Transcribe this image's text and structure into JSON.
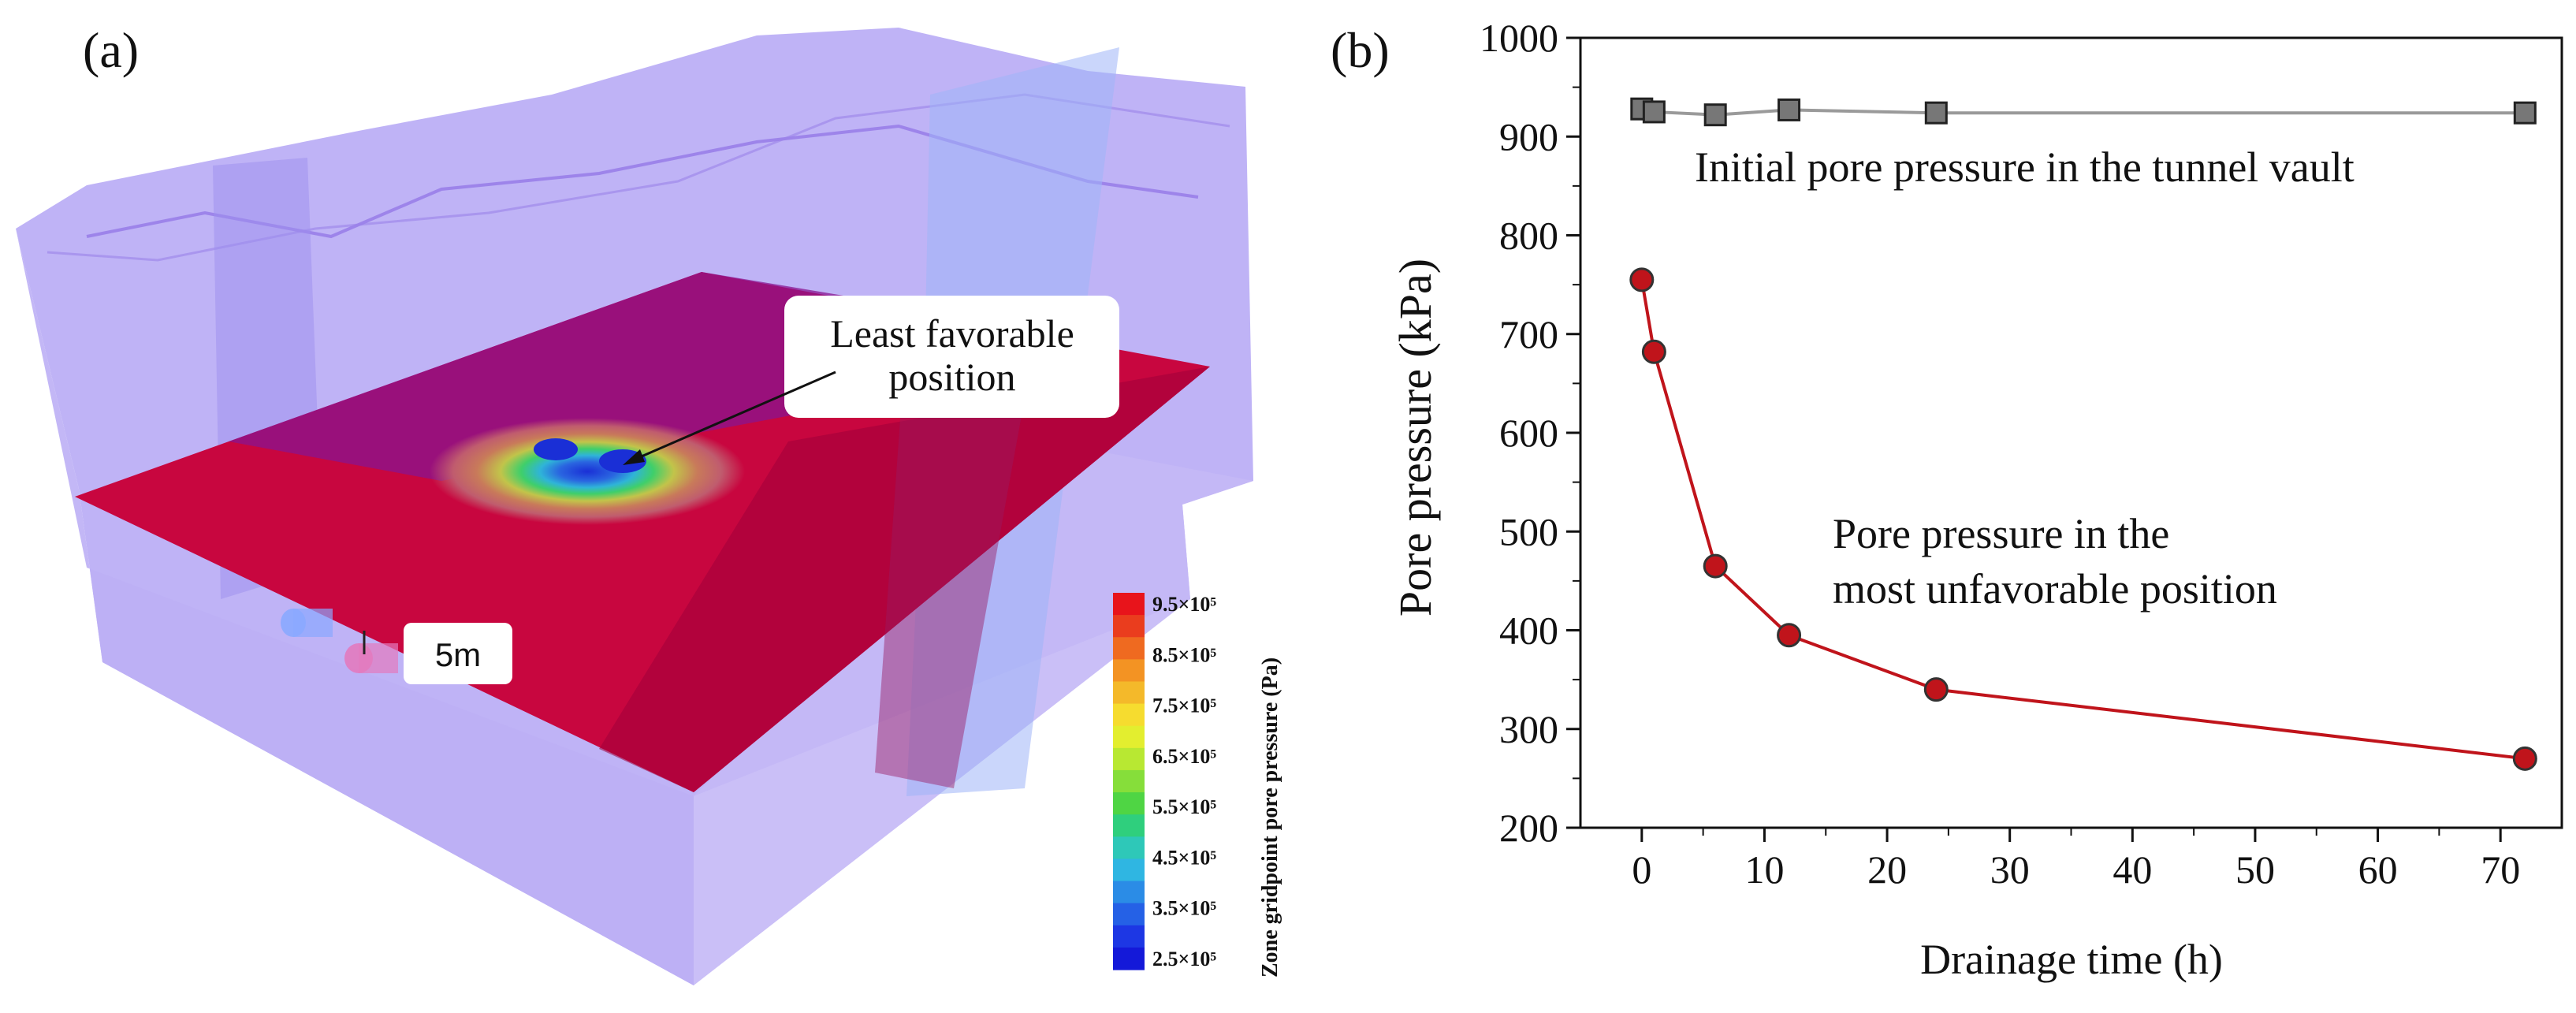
{
  "panel_a": {
    "label": "(a)",
    "callout": {
      "line1": "Least favorable",
      "line2": "position"
    },
    "dimension_label": "5m",
    "colorbar": {
      "title": "Zone gridpoint pore pressure (Pa)",
      "ticks": [
        "9.5×10⁵",
        "8.5×10⁵",
        "7.5×10⁵",
        "6.5×10⁵",
        "5.5×10⁵",
        "4.5×10⁵",
        "3.5×10⁵",
        "2.5×10⁵"
      ],
      "colors": [
        "#e8141b",
        "#ea3d1e",
        "#ef6a20",
        "#f39323",
        "#f4b92a",
        "#f6dc2f",
        "#e3ee2f",
        "#b8e832",
        "#86de3a",
        "#4fd544",
        "#2fcf7d",
        "#2ec8b8",
        "#2fb6e2",
        "#2b8ce6",
        "#2561e6",
        "#1d37e4",
        "#1419d9"
      ]
    },
    "colors": {
      "model_block": "#a898f0",
      "red_plane": "#c8063f",
      "contour_center": "#1a36d8"
    }
  },
  "chart_data": {
    "type": "line",
    "label": "(b)",
    "xlabel": "Drainage time (h)",
    "ylabel": "Pore pressure (kPa)",
    "xlim": [
      -5,
      75
    ],
    "ylim": [
      200,
      1000
    ],
    "xticks": [
      0,
      10,
      20,
      30,
      40,
      50,
      60,
      70
    ],
    "yticks": [
      200,
      300,
      400,
      500,
      600,
      700,
      800,
      900,
      1000
    ],
    "series": [
      {
        "name": "Initial pore pressure in the tunnel vault",
        "annotation": "Initial pore pressure in the tunnel vault",
        "marker": "square",
        "color": "#777777",
        "line_color": "#9a9a9a",
        "x": [
          0,
          1,
          6,
          12,
          24,
          72
        ],
        "y": [
          928,
          925,
          922,
          927,
          924,
          924
        ]
      },
      {
        "name": "Pore pressure in the most unfavorable position",
        "annotation_line1": "Pore pressure in the",
        "annotation_line2": "most unfavorable position",
        "marker": "circle",
        "color": "#c0141b",
        "line_color": "#c0141b",
        "x": [
          0,
          1,
          6,
          12,
          24,
          72
        ],
        "y": [
          755,
          682,
          465,
          395,
          340,
          270
        ]
      }
    ]
  }
}
